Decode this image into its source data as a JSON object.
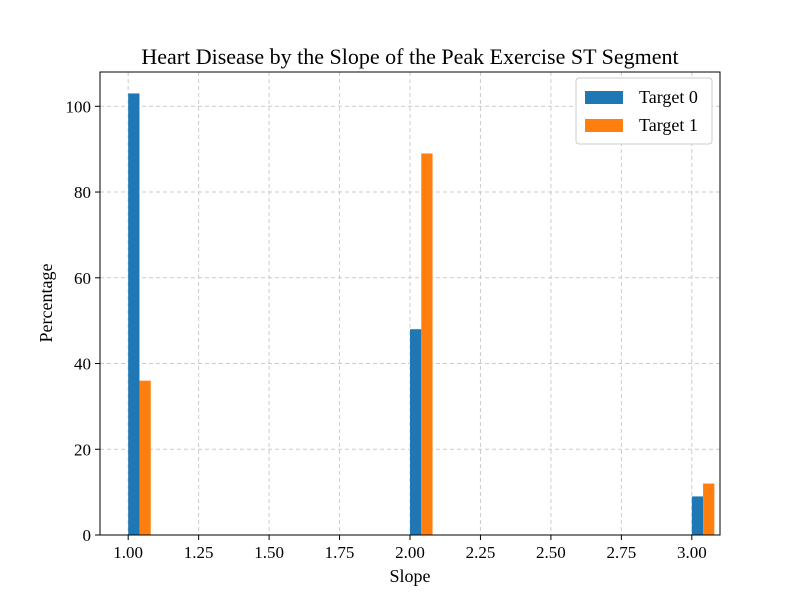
{
  "chart_data": {
    "type": "bar",
    "title": "Heart Disease by the Slope of the Peak Exercise ST Segment",
    "xlabel": "Slope",
    "ylabel": "Percentage",
    "xlim": [
      0.9,
      3.1
    ],
    "ylim": [
      0,
      108
    ],
    "xticks": [
      1.0,
      1.25,
      1.5,
      1.75,
      2.0,
      2.25,
      2.5,
      2.75,
      3.0
    ],
    "xtick_labels": [
      "1.00",
      "1.25",
      "1.50",
      "1.75",
      "2.00",
      "2.25",
      "2.50",
      "2.75",
      "3.00"
    ],
    "yticks": [
      0,
      20,
      40,
      60,
      80,
      100
    ],
    "ytick_labels": [
      "0",
      "20",
      "40",
      "60",
      "80",
      "100"
    ],
    "grid": true,
    "legend_position": "top-right",
    "series": [
      {
        "name": "Target 0",
        "color": "#1f77b4",
        "points": [
          {
            "x": 1,
            "y": 103
          },
          {
            "x": 2,
            "y": 48
          },
          {
            "x": 3,
            "y": 9
          }
        ]
      },
      {
        "name": "Target 1",
        "color": "#ff7f0e",
        "points": [
          {
            "x": 1,
            "y": 36
          },
          {
            "x": 2,
            "y": 89
          },
          {
            "x": 3,
            "y": 12
          }
        ]
      }
    ]
  }
}
